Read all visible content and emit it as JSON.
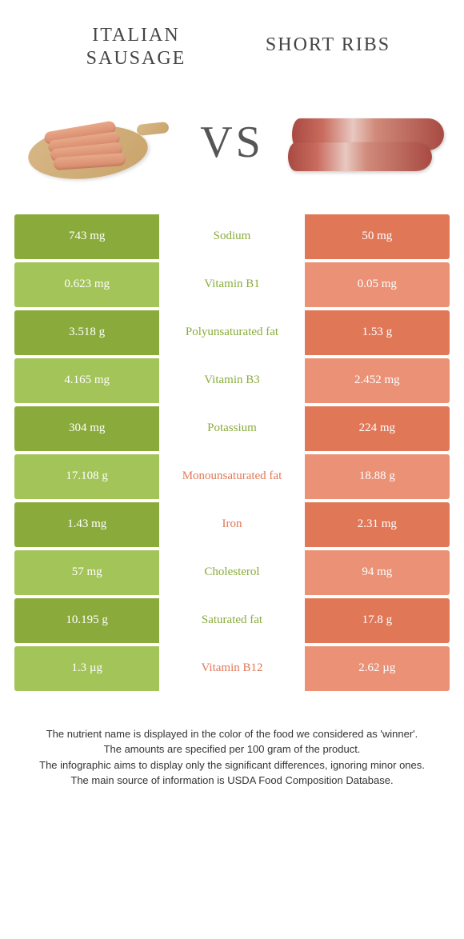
{
  "colors": {
    "left_dark": "#8aab3c",
    "left_light": "#a3c458",
    "right_dark": "#e07858",
    "right_light": "#ea9176",
    "nutrient_left": "#8aab3c",
    "nutrient_right": "#e07858"
  },
  "titles": {
    "left": "ITALIAN SAUSAGE",
    "right": "SHORT RIBS",
    "vs": "VS"
  },
  "rows": [
    {
      "nutrient": "Sodium",
      "left": "743 mg",
      "right": "50 mg",
      "winner": "left"
    },
    {
      "nutrient": "Vitamin B1",
      "left": "0.623 mg",
      "right": "0.05 mg",
      "winner": "left"
    },
    {
      "nutrient": "Polyunsaturated fat",
      "left": "3.518 g",
      "right": "1.53 g",
      "winner": "left"
    },
    {
      "nutrient": "Vitamin B3",
      "left": "4.165 mg",
      "right": "2.452 mg",
      "winner": "left"
    },
    {
      "nutrient": "Potassium",
      "left": "304 mg",
      "right": "224 mg",
      "winner": "left"
    },
    {
      "nutrient": "Monounsaturated fat",
      "left": "17.108 g",
      "right": "18.88 g",
      "winner": "right"
    },
    {
      "nutrient": "Iron",
      "left": "1.43 mg",
      "right": "2.31 mg",
      "winner": "right"
    },
    {
      "nutrient": "Cholesterol",
      "left": "57 mg",
      "right": "94 mg",
      "winner": "left"
    },
    {
      "nutrient": "Saturated fat",
      "left": "10.195 g",
      "right": "17.8 g",
      "winner": "left"
    },
    {
      "nutrient": "Vitamin B12",
      "left": "1.3 µg",
      "right": "2.62 µg",
      "winner": "right"
    }
  ],
  "footer": {
    "line1": "The nutrient name is displayed in the color of the food we considered as 'winner'.",
    "line2": "The amounts are specified per 100 gram of the product.",
    "line3": "The infographic aims to display only the significant differences, ignoring minor ones.",
    "line4": "The main source of information is USDA Food Composition Database."
  }
}
